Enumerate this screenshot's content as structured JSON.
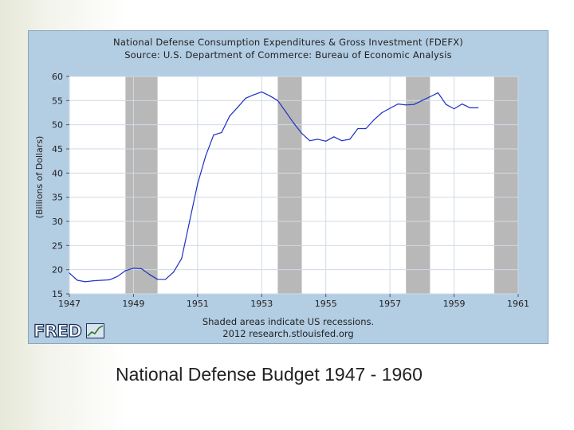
{
  "chart_data": {
    "type": "line",
    "title": "National Defense Consumption Expenditures & Gross Investment (FDEFX)",
    "subtitle": "Source: U.S. Department of Commerce: Bureau of Economic Analysis",
    "ylabel": "(Billions of Dollars)",
    "xlabel": "",
    "xlim": [
      1947,
      1961
    ],
    "ylim": [
      15,
      60
    ],
    "x_ticks": [
      "1947",
      "1949",
      "1951",
      "1953",
      "1955",
      "1957",
      "1959",
      "1961"
    ],
    "y_ticks": [
      "15",
      "20",
      "25",
      "30",
      "35",
      "40",
      "45",
      "50",
      "55",
      "60"
    ],
    "grid": true,
    "line_color": "#1d2fc4",
    "recessions": [
      [
        1948.75,
        1949.75
      ],
      [
        1953.5,
        1954.25
      ],
      [
        1957.5,
        1958.25
      ],
      [
        1960.25,
        1961.0
      ]
    ],
    "series": [
      {
        "x": [
          1947.0,
          1947.25,
          1947.5,
          1947.75,
          1948.0,
          1948.25,
          1948.5,
          1948.75,
          1949.0,
          1949.25,
          1949.5,
          1949.75,
          1950.0,
          1950.25,
          1950.5,
          1950.75,
          1951.0,
          1951.25,
          1951.5,
          1951.75,
          1952.0,
          1952.25,
          1952.5,
          1952.75,
          1953.0,
          1953.25,
          1953.5,
          1953.75,
          1954.0,
          1954.25,
          1954.5,
          1954.75,
          1955.0,
          1955.25,
          1955.5,
          1955.75,
          1956.0,
          1956.25,
          1956.5,
          1956.75,
          1957.0,
          1957.25,
          1957.5,
          1957.75,
          1958.0,
          1958.25,
          1958.5,
          1958.75,
          1959.0,
          1959.25,
          1959.5,
          1959.75
        ],
        "y": [
          19.3,
          17.8,
          17.5,
          17.7,
          17.8,
          17.9,
          18.6,
          19.8,
          20.3,
          20.2,
          19.0,
          18.0,
          18.0,
          19.5,
          22.3,
          30.0,
          37.8,
          43.5,
          47.9,
          48.4,
          51.8,
          53.6,
          55.5,
          56.2,
          56.8,
          56.0,
          55.0,
          52.7,
          50.3,
          48.2,
          46.7,
          47.0,
          46.6,
          47.5,
          46.7,
          47.0,
          49.2,
          49.2,
          51.0,
          52.5,
          53.4,
          54.3,
          54.1,
          54.2,
          55.0,
          55.8,
          56.6,
          54.2,
          53.3,
          54.3,
          53.5,
          53.5
        ]
      }
    ]
  },
  "footer": {
    "line1": "Shaded areas indicate US recessions.",
    "line2": "2012 research.stlouisfed.org"
  },
  "logo": {
    "text": "FRED"
  },
  "caption": "National Defense Budget 1947 - 1960",
  "colors": {
    "frame_bg": "#b3cde3",
    "plot_bg": "#ffffff",
    "recession": "#b8b8b8",
    "grid": "#cfdbe6"
  }
}
